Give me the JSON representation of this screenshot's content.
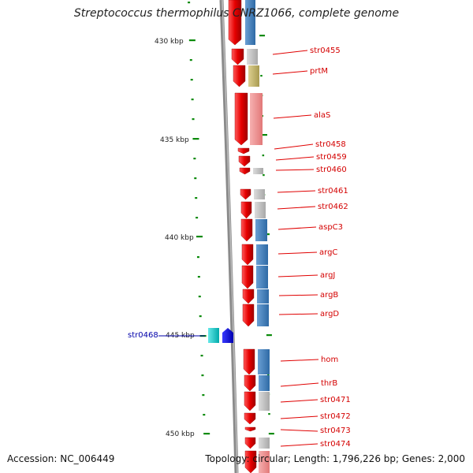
{
  "title": "Streptococcus thermophilus CNRZ1066, complete genome",
  "footer": {
    "accession": "Accession: NC_006449",
    "stats": "Topology: circular; Length: 1,796,226 bp; Genes: 2,000"
  },
  "scale_labels": [
    "430 kbp",
    "435 kbp",
    "440 kbp",
    "445 kbp",
    "450 kbp"
  ],
  "genes": [
    "str0455",
    "prtM",
    "alaS",
    "str0458",
    "str0459",
    "str0460",
    "str0461",
    "str0462",
    "aspC3",
    "argC",
    "argJ",
    "argB",
    "argD",
    "hom",
    "thrB",
    "str0471",
    "str0472",
    "str0473",
    "str0474"
  ],
  "reverse_gene": "str0468",
  "colors": {
    "forward_gene": "#e00000",
    "cog_blue": "#3f7fbf",
    "cog_gray": "#bfbfbf",
    "cog_pink": "#f09090",
    "cog_olive": "#c8b870",
    "reverse_gene": "#0000ff",
    "reverse_cog": "#00cccc",
    "tick": "#0a8a0a",
    "backbone": "#888888"
  }
}
